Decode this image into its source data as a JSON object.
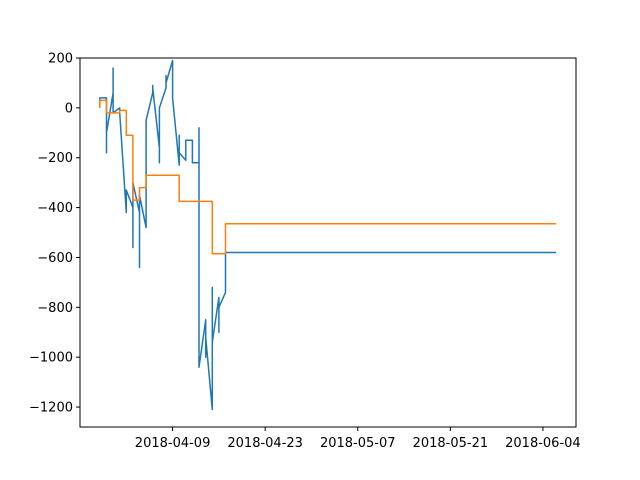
{
  "chart_data": {
    "type": "line",
    "title": "",
    "xlabel": "",
    "ylabel": "",
    "x_type": "date",
    "xlim": [
      "2018-03-26",
      "2018-06-09"
    ],
    "ylim": [
      -1280,
      200
    ],
    "grid": false,
    "legend": "none",
    "x_ticks": [
      {
        "value": "2018-04-09",
        "label": "2018-04-09"
      },
      {
        "value": "2018-04-23",
        "label": "2018-04-23"
      },
      {
        "value": "2018-05-07",
        "label": "2018-05-07"
      },
      {
        "value": "2018-05-21",
        "label": "2018-05-21"
      },
      {
        "value": "2018-06-04",
        "label": "2018-06-04"
      }
    ],
    "y_ticks": [
      {
        "value": 200,
        "label": "200"
      },
      {
        "value": 0,
        "label": "0"
      },
      {
        "value": -200,
        "label": "−200"
      },
      {
        "value": -400,
        "label": "−400"
      },
      {
        "value": -600,
        "label": "−600"
      },
      {
        "value": -800,
        "label": "−800"
      },
      {
        "value": -1000,
        "label": "−1000"
      },
      {
        "value": -1200,
        "label": "−1200"
      }
    ],
    "series": [
      {
        "color": "#1f77b4",
        "points": [
          [
            "2018-03-29",
            0
          ],
          [
            "2018-03-29",
            40
          ],
          [
            "2018-03-30",
            40
          ],
          [
            "2018-03-30",
            -180
          ],
          [
            "2018-03-30",
            -100
          ],
          [
            "2018-03-31",
            60
          ],
          [
            "2018-03-31",
            160
          ],
          [
            "2018-03-31",
            -20
          ],
          [
            "2018-04-01",
            0
          ],
          [
            "2018-04-01",
            -20
          ],
          [
            "2018-04-02",
            -420
          ],
          [
            "2018-04-02",
            -330
          ],
          [
            "2018-04-03",
            -400
          ],
          [
            "2018-04-03",
            -560
          ],
          [
            "2018-04-03",
            -300
          ],
          [
            "2018-04-04",
            -420
          ],
          [
            "2018-04-04",
            -640
          ],
          [
            "2018-04-04",
            -450
          ],
          [
            "2018-04-04",
            -350
          ],
          [
            "2018-04-05",
            -480
          ],
          [
            "2018-04-05",
            -320
          ],
          [
            "2018-04-05",
            -200
          ],
          [
            "2018-04-05",
            -50
          ],
          [
            "2018-04-06",
            60
          ],
          [
            "2018-04-06",
            90
          ],
          [
            "2018-04-06",
            80
          ],
          [
            "2018-04-07",
            -160
          ],
          [
            "2018-04-07",
            -60
          ],
          [
            "2018-04-07",
            -220
          ],
          [
            "2018-04-07",
            0
          ],
          [
            "2018-04-08",
            80
          ],
          [
            "2018-04-08",
            130
          ],
          [
            "2018-04-08",
            100
          ],
          [
            "2018-04-09",
            190
          ],
          [
            "2018-04-09",
            140
          ],
          [
            "2018-04-09",
            180
          ],
          [
            "2018-04-09",
            40
          ],
          [
            "2018-04-10",
            -230
          ],
          [
            "2018-04-10",
            -110
          ],
          [
            "2018-04-10",
            -220
          ],
          [
            "2018-04-10",
            -180
          ],
          [
            "2018-04-11",
            -210
          ],
          [
            "2018-04-11",
            -130
          ],
          [
            "2018-04-12",
            -130
          ],
          [
            "2018-04-12",
            -220
          ],
          [
            "2018-04-13",
            -220
          ],
          [
            "2018-04-13",
            -80
          ],
          [
            "2018-04-13",
            -1040
          ],
          [
            "2018-04-14",
            -850
          ],
          [
            "2018-04-14",
            -1000
          ],
          [
            "2018-04-14",
            -920
          ],
          [
            "2018-04-15",
            -1210
          ],
          [
            "2018-04-15",
            -720
          ],
          [
            "2018-04-15",
            -940
          ],
          [
            "2018-04-16",
            -760
          ],
          [
            "2018-04-16",
            -900
          ],
          [
            "2018-04-16",
            -800
          ],
          [
            "2018-04-17",
            -740
          ],
          [
            "2018-04-17",
            -580
          ],
          [
            "2018-06-06",
            -580
          ]
        ]
      },
      {
        "color": "#ff7f0e",
        "points": [
          [
            "2018-03-29",
            0
          ],
          [
            "2018-03-29",
            30
          ],
          [
            "2018-03-30",
            30
          ],
          [
            "2018-03-30",
            -20
          ],
          [
            "2018-04-01",
            -20
          ],
          [
            "2018-04-01",
            -10
          ],
          [
            "2018-04-02",
            -10
          ],
          [
            "2018-04-02",
            -110
          ],
          [
            "2018-04-03",
            -110
          ],
          [
            "2018-04-03",
            -370
          ],
          [
            "2018-04-04",
            -370
          ],
          [
            "2018-04-04",
            -320
          ],
          [
            "2018-04-05",
            -320
          ],
          [
            "2018-04-05",
            -270
          ],
          [
            "2018-04-10",
            -270
          ],
          [
            "2018-04-10",
            -345
          ],
          [
            "2018-04-10",
            -375
          ],
          [
            "2018-04-15",
            -375
          ],
          [
            "2018-04-15",
            -585
          ],
          [
            "2018-04-17",
            -585
          ],
          [
            "2018-04-17",
            -465
          ],
          [
            "2018-06-06",
            -465
          ]
        ]
      }
    ]
  }
}
